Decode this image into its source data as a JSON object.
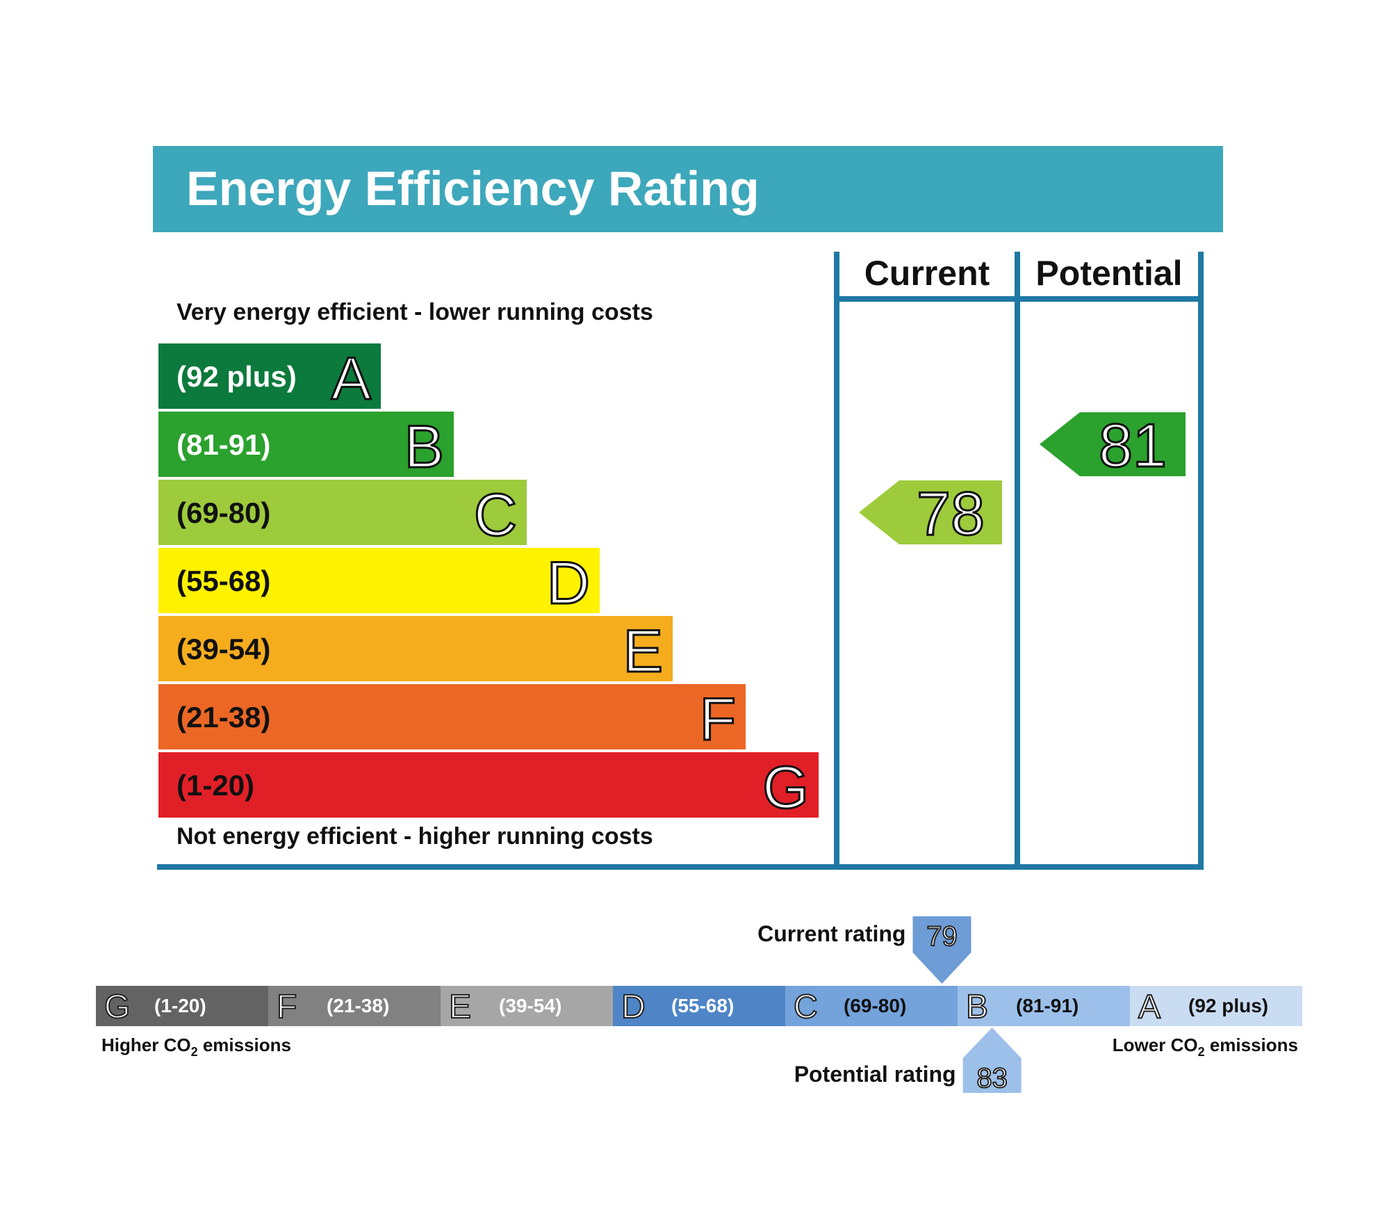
{
  "title": "Energy Efficiency Rating",
  "columns": {
    "current": "Current",
    "potential": "Potential"
  },
  "top_note": "Very energy efficient - lower running costs",
  "bottom_note": "Not energy efficient - higher running costs",
  "colors": {
    "header": "#3da7bb",
    "frame": "#1f78a4",
    "A": "#0c7a3c",
    "B": "#2ba12e",
    "C": "#9dcb3c",
    "D": "#fff200",
    "E": "#f5ad1e",
    "F": "#ec6725",
    "G": "#e11f27"
  },
  "chart_data": [
    {
      "type": "bar",
      "title": "Energy Efficiency Rating",
      "categories": [
        "A",
        "B",
        "C",
        "D",
        "E",
        "F",
        "G"
      ],
      "ranges": [
        "(92 plus)",
        "(81-91)",
        "(69-80)",
        "(55-68)",
        "(39-54)",
        "(21-38)",
        "(1-20)"
      ],
      "current": {
        "label": "Current",
        "value": 78,
        "band": "C"
      },
      "potential": {
        "label": "Potential",
        "value": 81,
        "band": "B"
      }
    },
    {
      "type": "bar",
      "title": "",
      "bands": [
        {
          "letter": "G",
          "range": "(1-20)",
          "color": "#636363"
        },
        {
          "letter": "F",
          "range": "(21-38)",
          "color": "#818181"
        },
        {
          "letter": "E",
          "range": "(39-54)",
          "color": "#a6a6a6"
        },
        {
          "letter": "D",
          "range": "(55-68)",
          "color": "#4f85c6"
        },
        {
          "letter": "C",
          "range": "(69-80)",
          "color": "#74a3db"
        },
        {
          "letter": "B",
          "range": "(81-91)",
          "color": "#9cc0ea"
        },
        {
          "letter": "A",
          "range": "(92 plus)",
          "color": "#c9dcf2"
        }
      ],
      "left_note_prefix": "Higher CO",
      "left_note_suffix": " emissions",
      "right_note_prefix": "Lower CO",
      "right_note_suffix": " emissions",
      "subscript": "2",
      "current": {
        "label": "Current rating",
        "value": 79,
        "color": "#6e9cd6"
      },
      "potential": {
        "label": "Potential rating",
        "value": 83,
        "color": "#9cc0ea"
      }
    }
  ]
}
